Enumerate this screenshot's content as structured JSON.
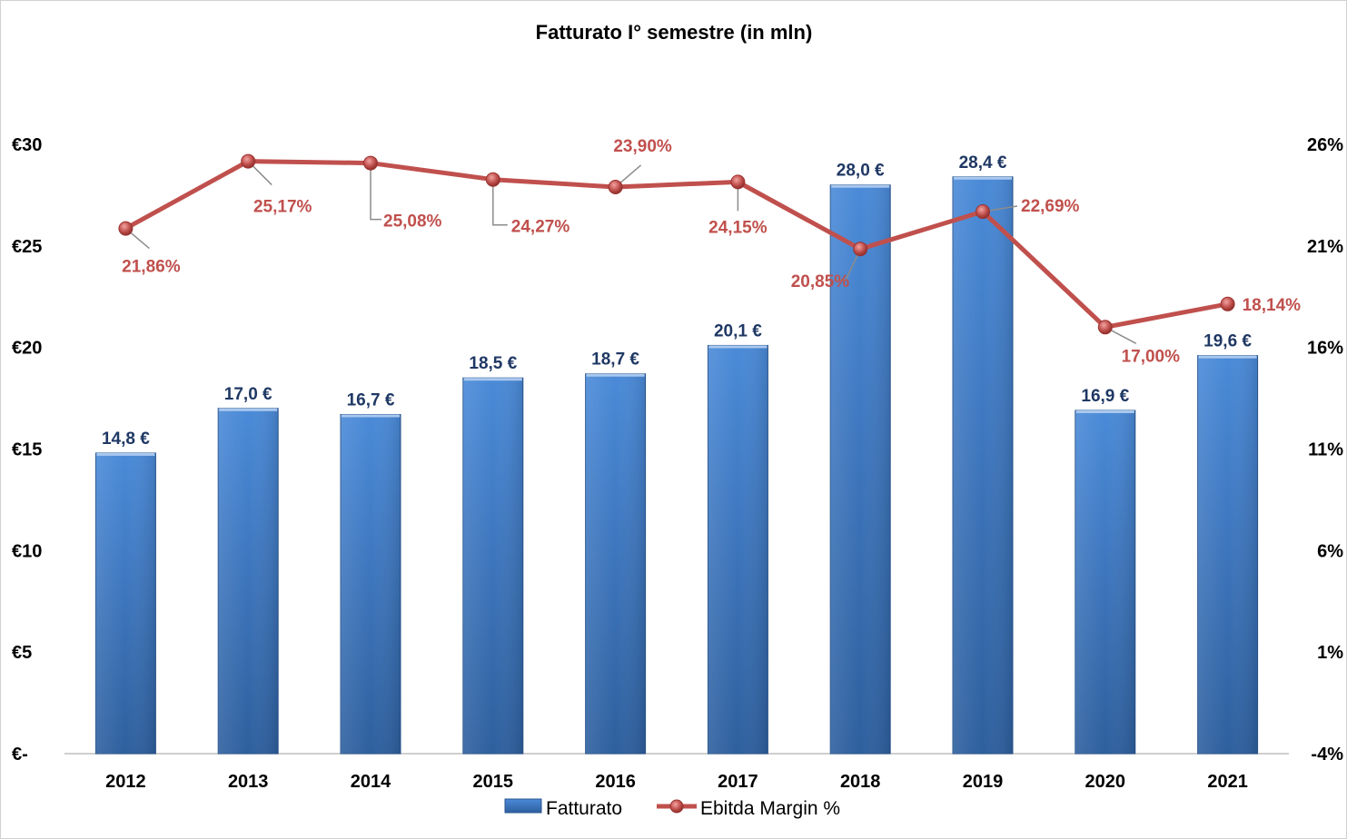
{
  "chart_data": {
    "type": "bar",
    "title": "Fatturato I° semestre (in mln)",
    "categories": [
      "2012",
      "2013",
      "2014",
      "2015",
      "2016",
      "2017",
      "2018",
      "2019",
      "2020",
      "2021"
    ],
    "series": [
      {
        "name": "Fatturato",
        "type": "bar",
        "axis": "left",
        "values": [
          14.8,
          17.0,
          16.7,
          18.5,
          18.7,
          20.1,
          28.0,
          28.4,
          16.9,
          19.6
        ],
        "labels": [
          "14,8 €",
          "17,0 €",
          "16,7 €",
          "18,5 €",
          "18,7 €",
          "20,1 €",
          "28,0 €",
          "28,4 €",
          "16,9 €",
          "19,6 €"
        ],
        "color": "#4a86d4"
      },
      {
        "name": "Ebitda Margin %",
        "type": "line",
        "axis": "right",
        "values": [
          21.86,
          25.17,
          25.08,
          24.27,
          23.9,
          24.15,
          20.85,
          22.69,
          17.0,
          18.14
        ],
        "labels": [
          "21,86%",
          "25,17%",
          "25,08%",
          "24,27%",
          "23,90%",
          "24,15%",
          "20,85%",
          "22,69%",
          "17,00%",
          "18,14%"
        ],
        "color": "#c0504d"
      }
    ],
    "y_left": {
      "ylim": [
        0,
        30
      ],
      "ticks": [
        0,
        5,
        10,
        15,
        20,
        25,
        30
      ],
      "tick_labels": [
        "€-",
        "€5",
        "€10",
        "€15",
        "€20",
        "€25",
        "€30"
      ]
    },
    "y_right": {
      "ylim": [
        -4,
        26
      ],
      "ticks": [
        -4,
        1,
        6,
        11,
        16,
        21,
        26
      ],
      "tick_labels": [
        "-4%",
        "1%",
        "6%",
        "11%",
        "16%",
        "21%",
        "26%"
      ]
    },
    "grid": false,
    "legend": "bottom"
  }
}
